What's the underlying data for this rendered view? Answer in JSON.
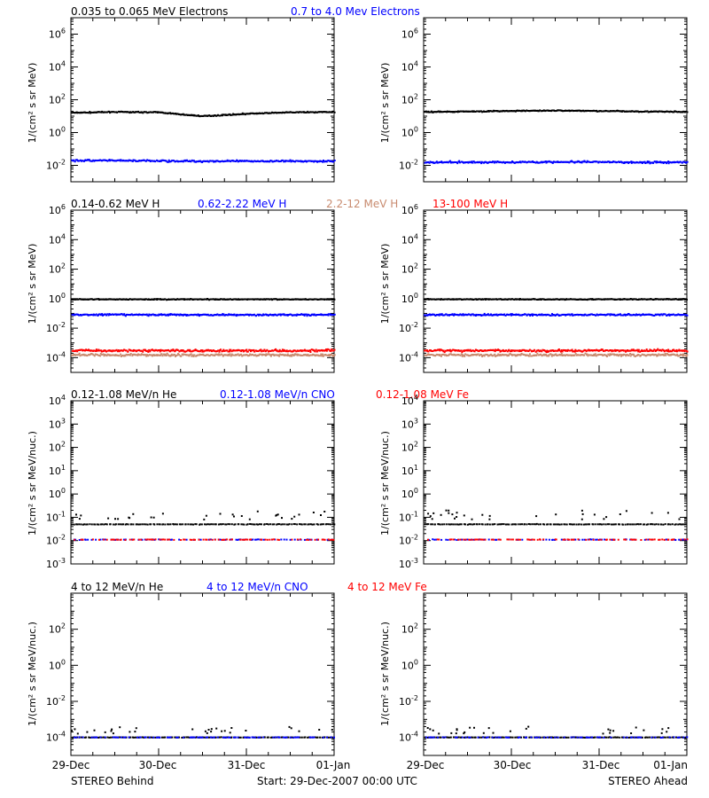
{
  "colors": {
    "black": "#000000",
    "blue": "#0000ff",
    "salmon": "#c88a6e",
    "red": "#ff0000"
  },
  "footer": {
    "left": "STEREO Behind",
    "center": "Start: 29-Dec-2007 00:00 UTC",
    "right": "STEREO Ahead"
  },
  "x_tick_labels": [
    "29-Dec",
    "30-Dec",
    "31-Dec",
    "01-Jan"
  ],
  "rows": [
    {
      "titles": [
        {
          "text": "0.035 to 0.065 MeV Electrons",
          "color": "#000000"
        },
        {
          "text": "0.7 to 4.0 Mev Electrons",
          "color": "#0000ff"
        }
      ],
      "ylabel": "1/(cm² s sr MeV)"
    },
    {
      "titles": [
        {
          "text": "0.14-0.62 MeV H",
          "color": "#000000"
        },
        {
          "text": "0.62-2.22 MeV H",
          "color": "#0000ff"
        },
        {
          "text": "2.2-12 MeV H",
          "color": "#c88a6e"
        },
        {
          "text": "13-100 MeV H",
          "color": "#ff0000"
        }
      ],
      "ylabel": "1/(cm² s sr MeV)"
    },
    {
      "titles": [
        {
          "text": "0.12-1.08 MeV/n He",
          "color": "#000000"
        },
        {
          "text": "0.12-1.08 MeV/n CNO",
          "color": "#0000ff"
        },
        {
          "text": "0.12-1.08 MeV Fe",
          "color": "#ff0000"
        }
      ],
      "ylabel": "1/(cm² s sr MeV/nuc.)"
    },
    {
      "titles": [
        {
          "text": "4 to 12 MeV/n He",
          "color": "#000000"
        },
        {
          "text": "4 to 12 MeV/n CNO",
          "color": "#0000ff"
        },
        {
          "text": "4 to 12 MeV Fe",
          "color": "#ff0000"
        }
      ],
      "ylabel": "1/(cm² s sr MeV/nuc.)"
    }
  ],
  "chart_data": [
    {
      "type": "scatter",
      "panel": "row1-behind",
      "yscale": "log",
      "yexp_range": [
        -3,
        7
      ],
      "ytick_exps": [
        -2,
        0,
        2,
        4,
        6
      ],
      "xlim_days": [
        0,
        3
      ],
      "series": [
        {
          "name": "0.035 to 0.065 MeV Electrons",
          "color": "#000000",
          "x": [
            0,
            0.5,
            1.0,
            1.3,
            1.5,
            2.0,
            2.5,
            3.0
          ],
          "y": [
            16,
            18,
            17,
            12,
            10,
            14,
            17,
            18
          ]
        },
        {
          "name": "0.7 to 4.0 Mev Electrons",
          "color": "#0000ff",
          "x": [
            0,
            1.5,
            3.0
          ],
          "y": [
            0.02,
            0.018,
            0.018
          ]
        }
      ]
    },
    {
      "type": "scatter",
      "panel": "row1-ahead",
      "yscale": "log",
      "yexp_range": [
        -3,
        7
      ],
      "ytick_exps": [
        -2,
        0,
        2,
        4,
        6
      ],
      "xlim_days": [
        0,
        3
      ],
      "series": [
        {
          "name": "0.035 to 0.065 MeV Electrons",
          "color": "#000000",
          "x": [
            0,
            1.5,
            3.0
          ],
          "y": [
            18,
            22,
            18
          ]
        },
        {
          "name": "0.7 to 4.0 Mev Electrons",
          "color": "#0000ff",
          "x": [
            0,
            1.5,
            3.0
          ],
          "y": [
            0.015,
            0.016,
            0.015
          ]
        }
      ]
    },
    {
      "type": "scatter",
      "panel": "row2-behind",
      "yscale": "log",
      "yexp_range": [
        -5,
        6
      ],
      "ytick_exps": [
        -4,
        -2,
        0,
        2,
        4,
        6
      ],
      "xlim_days": [
        0,
        3
      ],
      "series": [
        {
          "name": "0.14-0.62 MeV H",
          "color": "#000000",
          "x": [
            0,
            3.0
          ],
          "y": [
            0.9,
            0.9
          ]
        },
        {
          "name": "0.62-2.22 MeV H",
          "color": "#0000ff",
          "x": [
            0,
            3.0
          ],
          "y": [
            0.08,
            0.08
          ]
        },
        {
          "name": "2.2-12 MeV H",
          "color": "#c88a6e",
          "x": [
            0,
            3.0
          ],
          "y": [
            0.00015,
            0.00015
          ]
        },
        {
          "name": "13-100 MeV H",
          "color": "#ff0000",
          "x": [
            0,
            3.0
          ],
          "y": [
            0.0003,
            0.0003
          ]
        }
      ]
    },
    {
      "type": "scatter",
      "panel": "row2-ahead",
      "yscale": "log",
      "yexp_range": [
        -5,
        6
      ],
      "ytick_exps": [
        -4,
        -2,
        0,
        2,
        4,
        6
      ],
      "xlim_days": [
        0,
        3
      ],
      "series": [
        {
          "name": "0.14-0.62 MeV H",
          "color": "#000000",
          "x": [
            0,
            3.0
          ],
          "y": [
            0.9,
            0.9
          ]
        },
        {
          "name": "0.62-2.22 MeV H",
          "color": "#0000ff",
          "x": [
            0,
            3.0
          ],
          "y": [
            0.08,
            0.08
          ]
        },
        {
          "name": "2.2-12 MeV H",
          "color": "#c88a6e",
          "x": [
            0,
            3.0
          ],
          "y": [
            0.00015,
            0.00015
          ]
        },
        {
          "name": "13-100 MeV H",
          "color": "#ff0000",
          "x": [
            0,
            3.0
          ],
          "y": [
            0.0003,
            0.0003
          ]
        }
      ]
    },
    {
      "type": "scatter",
      "panel": "row3-behind",
      "yscale": "log",
      "yexp_range": [
        -3,
        4
      ],
      "ytick_exps": [
        -3,
        -2,
        -1,
        0,
        1,
        2,
        3,
        4
      ],
      "xlim_days": [
        0,
        3
      ],
      "series": [
        {
          "name": "0.12-1.08 MeV/n He",
          "color": "#000000",
          "x": [
            0,
            3.0
          ],
          "y": [
            0.05,
            0.05
          ]
        },
        {
          "name": "0.12-1.08 MeV/n CNO",
          "color": "#0000ff",
          "x": [
            0,
            3.0
          ],
          "y": [
            0.011,
            0.011
          ]
        },
        {
          "name": "0.12-1.08 MeV Fe",
          "color": "#ff0000",
          "x": [
            0,
            3.0
          ],
          "y": [
            0.011,
            0.011
          ]
        }
      ]
    },
    {
      "type": "scatter",
      "panel": "row3-ahead",
      "yscale": "log",
      "yexp_range": [
        -3,
        4
      ],
      "ytick_exps": [
        -3,
        -2,
        -1,
        0,
        1,
        2,
        3,
        4
      ],
      "xlim_days": [
        0,
        3
      ],
      "series": [
        {
          "name": "0.12-1.08 MeV/n He",
          "color": "#000000",
          "x": [
            0,
            3.0
          ],
          "y": [
            0.05,
            0.05
          ]
        },
        {
          "name": "0.12-1.08 MeV/n CNO",
          "color": "#0000ff",
          "x": [
            0,
            3.0
          ],
          "y": [
            0.011,
            0.011
          ]
        },
        {
          "name": "0.12-1.08 MeV Fe",
          "color": "#ff0000",
          "x": [
            0,
            3.0
          ],
          "y": [
            0.011,
            0.011
          ]
        }
      ]
    },
    {
      "type": "scatter",
      "panel": "row4-behind",
      "yscale": "log",
      "yexp_range": [
        -5,
        4
      ],
      "ytick_exps": [
        -4,
        -2,
        0,
        2
      ],
      "xlim_days": [
        0,
        3
      ],
      "series": [
        {
          "name": "4 to 12 MeV/n He",
          "color": "#000000",
          "x": [
            0,
            3.0
          ],
          "y": [
            0.0001,
            0.0001
          ]
        },
        {
          "name": "4 to 12 MeV/n CNO",
          "color": "#0000ff",
          "x": [
            0,
            3.0
          ],
          "y": [
            0.0001,
            0.0001
          ]
        },
        {
          "name": "4 to 12 MeV Fe",
          "color": "#ff0000",
          "x": [],
          "y": []
        }
      ]
    },
    {
      "type": "scatter",
      "panel": "row4-ahead",
      "yscale": "log",
      "yexp_range": [
        -5,
        4
      ],
      "ytick_exps": [
        -4,
        -2,
        0,
        2
      ],
      "xlim_days": [
        0,
        3
      ],
      "series": [
        {
          "name": "4 to 12 MeV/n He",
          "color": "#000000",
          "x": [
            0,
            3.0
          ],
          "y": [
            0.0001,
            0.0001
          ]
        },
        {
          "name": "4 to 12 MeV/n CNO",
          "color": "#0000ff",
          "x": [
            0,
            3.0
          ],
          "y": [
            0.0001,
            0.0001
          ]
        },
        {
          "name": "4 to 12 MeV Fe",
          "color": "#ff0000",
          "x": [],
          "y": []
        }
      ]
    }
  ]
}
